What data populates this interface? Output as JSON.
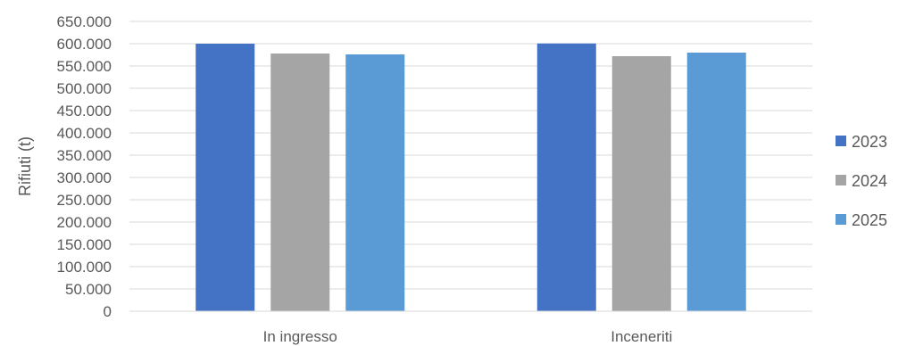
{
  "chart_data": {
    "type": "bar",
    "title": "",
    "xlabel": "",
    "ylabel": "Rifiuti (t)",
    "categories": [
      "In ingresso",
      "Inceneriti"
    ],
    "series": [
      {
        "name": "2023",
        "color": "#4472C4",
        "values": [
          600000,
          600500
        ]
      },
      {
        "name": "2024",
        "color": "#A5A5A5",
        "values": [
          578000,
          572000
        ]
      },
      {
        "name": "2025",
        "color": "#5B9BD5",
        "values": [
          576000,
          580000
        ]
      }
    ],
    "ylim": [
      0,
      650000
    ],
    "ytick_step": 50000,
    "y_tick_labels": [
      "0",
      "50.000",
      "100.000",
      "150.000",
      "200.000",
      "250.000",
      "300.000",
      "350.000",
      "400.000",
      "450.000",
      "500.000",
      "550.000",
      "600.000",
      "650.000"
    ],
    "grid": true,
    "legend_position": "right",
    "colors": {
      "gridline": "#D9D9D9",
      "axis": "#D9D9D9",
      "text": "#595959"
    }
  }
}
